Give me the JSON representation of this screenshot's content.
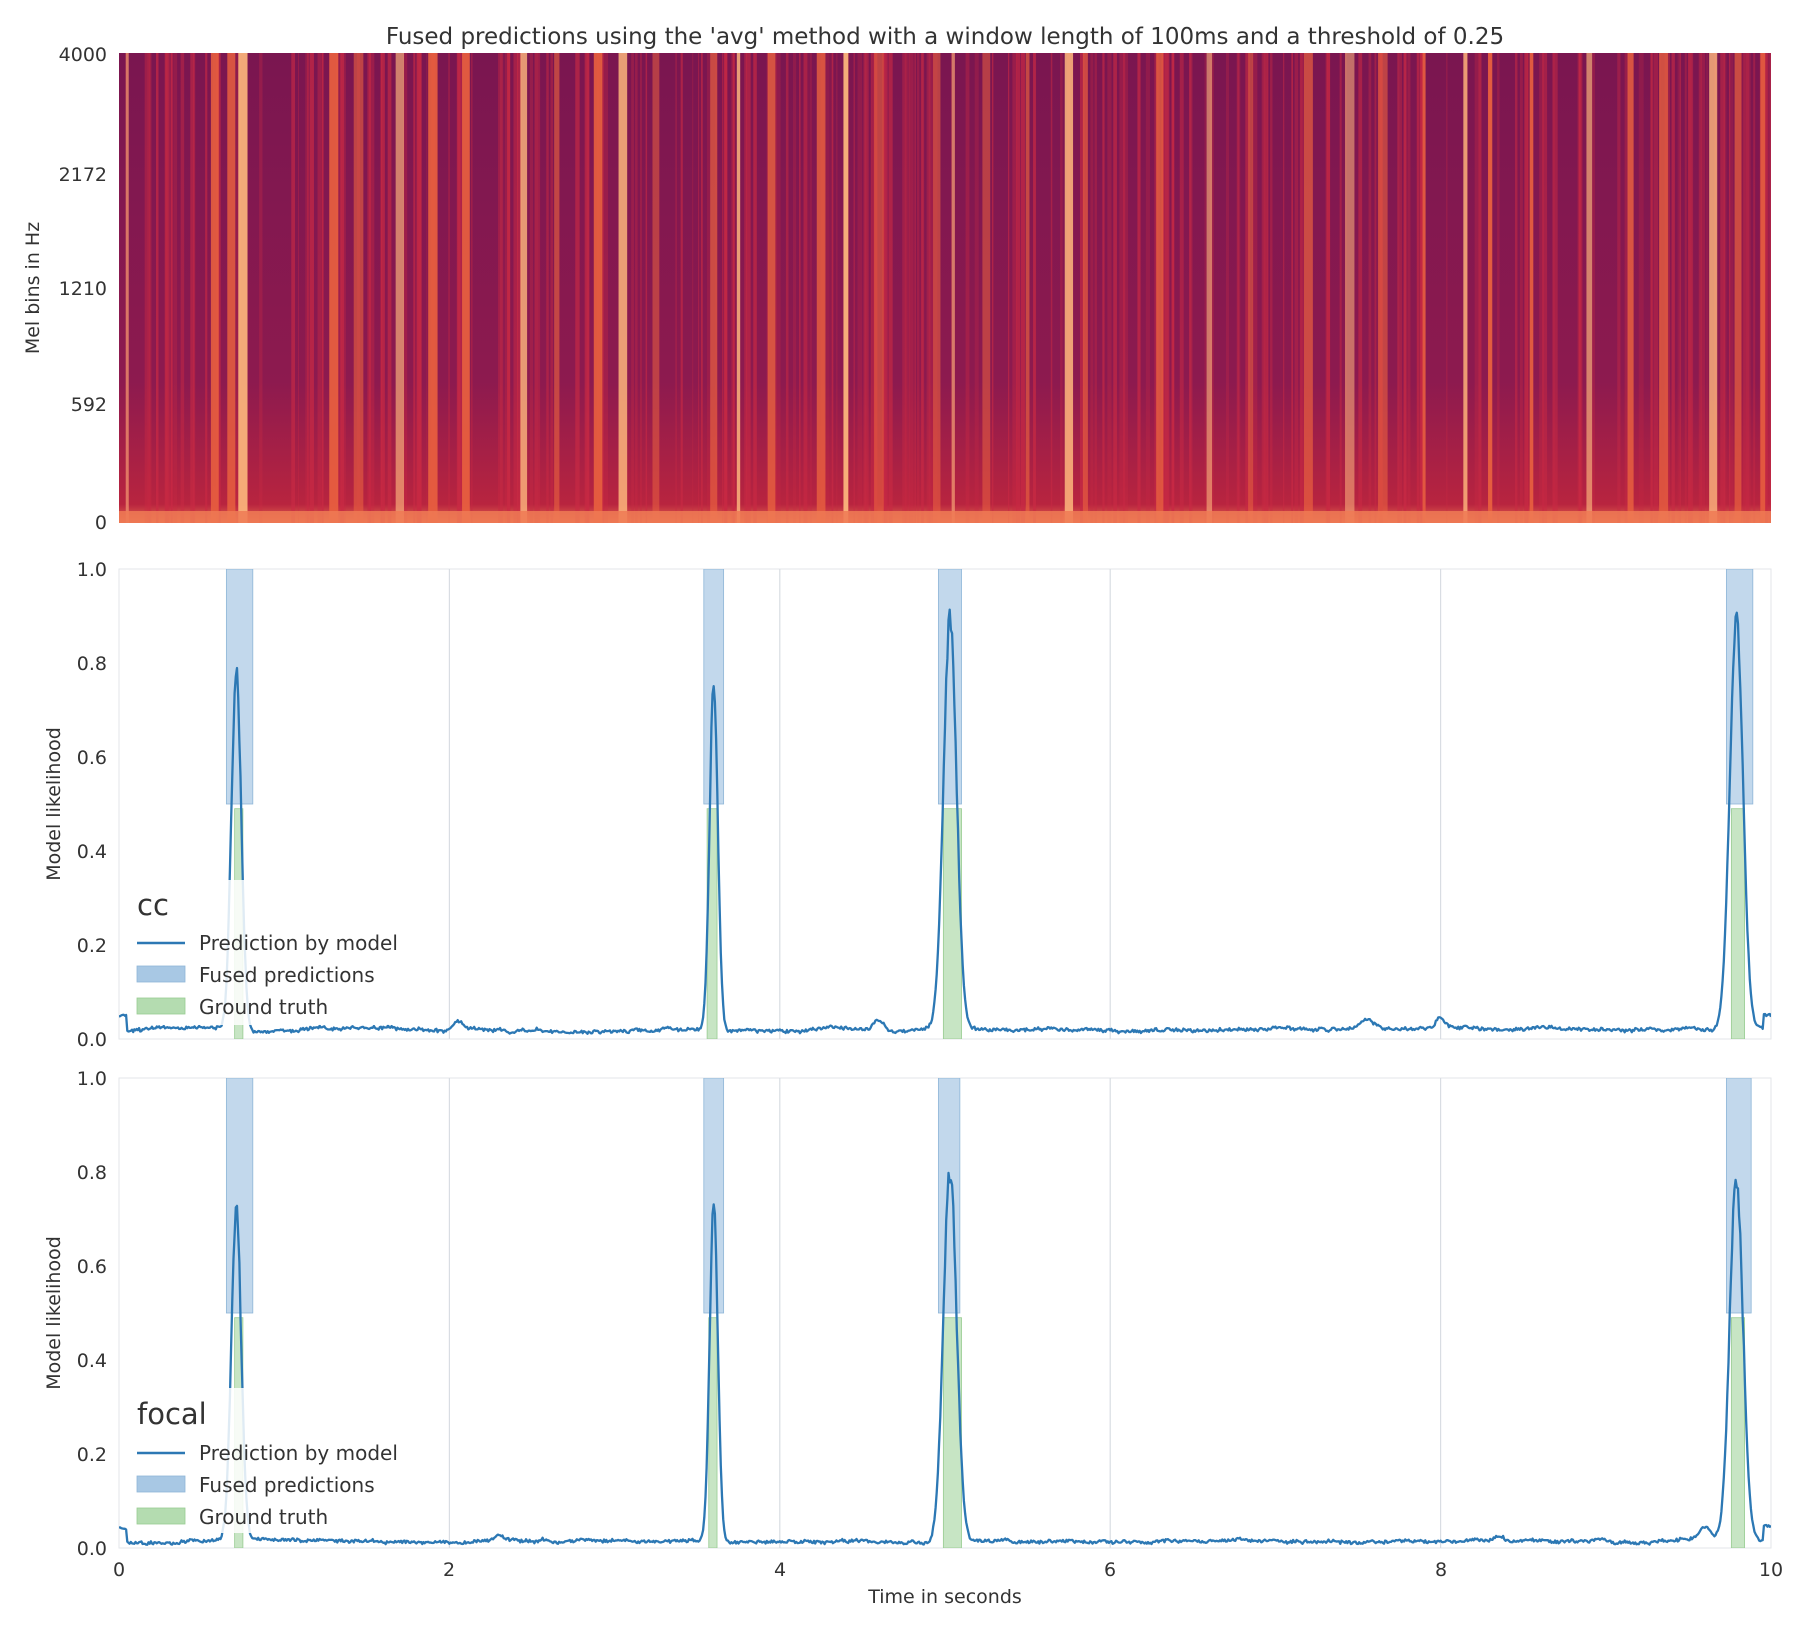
{
  "title": "Fused predictions using the 'avg' method with a window length of 100ms and a threshold of 0.25",
  "colors": {
    "prediction": "#2c78b4",
    "fused": "#a8c8e4",
    "ground_truth": "#b4dcb0",
    "grid": "#d9dde3",
    "spectrogram_low": "#7a1650",
    "spectrogram_mid": "#c92a44",
    "spectrogram_high": "#fbb57c"
  },
  "chart_data": [
    {
      "type": "heatmap",
      "name": "spectrogram",
      "ylabel": "Mel bins in Hz",
      "yticks": [
        "4000",
        "2172",
        "1210",
        "592",
        "0"
      ],
      "xlim": [
        0,
        10
      ],
      "bright_bands_seconds": [
        0.05,
        0.58,
        0.68,
        0.75,
        1.3,
        1.45,
        1.7,
        1.9,
        2.1,
        2.45,
        2.65,
        2.9,
        3.05,
        3.25,
        3.6,
        3.75,
        3.95,
        4.25,
        4.4,
        4.6,
        4.95,
        5.05,
        5.25,
        5.5,
        5.75,
        5.85,
        6.3,
        6.6,
        6.85,
        7.2,
        7.45,
        7.65,
        7.9,
        8.15,
        8.3,
        8.55,
        8.9,
        9.15,
        9.35,
        9.65,
        9.8,
        9.95
      ]
    },
    {
      "type": "line",
      "name": "cc",
      "panel_label": "cc",
      "ylabel": "Model likelihood",
      "yticks": [
        "1.0",
        "0.8",
        "0.6",
        "0.4",
        "0.2",
        "0.0"
      ],
      "xlim": [
        0,
        10
      ],
      "ylim": [
        0,
        1
      ],
      "legend": [
        "Prediction by model",
        "Fused predictions",
        "Ground truth"
      ],
      "fused_predictions": [
        [
          0.65,
          0.81
        ],
        [
          3.54,
          3.66
        ],
        [
          4.96,
          5.1
        ],
        [
          9.73,
          9.89
        ]
      ],
      "ground_truth": [
        [
          0.7,
          0.75
        ],
        [
          3.56,
          3.62
        ],
        [
          4.99,
          5.1
        ],
        [
          9.76,
          9.84
        ]
      ],
      "peaks": [
        {
          "t": 0.71,
          "v": 0.76,
          "w": 0.03
        },
        {
          "t": 3.6,
          "v": 0.74,
          "w": 0.025
        },
        {
          "t": 5.03,
          "v": 0.87,
          "w": 0.04
        },
        {
          "t": 9.79,
          "v": 0.87,
          "w": 0.04
        },
        {
          "t": 2.05,
          "v": 0.02,
          "w": 0.03
        },
        {
          "t": 4.6,
          "v": 0.025,
          "w": 0.03
        },
        {
          "t": 7.55,
          "v": 0.025,
          "w": 0.05
        },
        {
          "t": 8.0,
          "v": 0.02,
          "w": 0.03
        }
      ],
      "baseline": 0.02
    },
    {
      "type": "line",
      "name": "focal",
      "panel_label": "focal",
      "ylabel": "Model likelihood",
      "yticks": [
        "1.0",
        "0.8",
        "0.6",
        "0.4",
        "0.2",
        "0.0"
      ],
      "xlim": [
        0,
        10
      ],
      "ylim": [
        0,
        1
      ],
      "xlabel": "Time in seconds",
      "xticks": [
        "0",
        "2",
        "4",
        "6",
        "8",
        "10"
      ],
      "legend": [
        "Prediction by model",
        "Fused predictions",
        "Ground truth"
      ],
      "fused_predictions": [
        [
          0.65,
          0.81
        ],
        [
          3.54,
          3.66
        ],
        [
          4.96,
          5.09
        ],
        [
          9.73,
          9.88
        ]
      ],
      "ground_truth": [
        [
          0.7,
          0.75
        ],
        [
          3.57,
          3.62
        ],
        [
          4.99,
          5.1
        ],
        [
          9.76,
          9.84
        ]
      ],
      "peaks": [
        {
          "t": 0.71,
          "v": 0.7,
          "w": 0.03
        },
        {
          "t": 3.6,
          "v": 0.71,
          "w": 0.025
        },
        {
          "t": 5.03,
          "v": 0.79,
          "w": 0.04
        },
        {
          "t": 9.79,
          "v": 0.77,
          "w": 0.04
        },
        {
          "t": 2.3,
          "v": 0.012,
          "w": 0.03
        },
        {
          "t": 8.35,
          "v": 0.012,
          "w": 0.03
        },
        {
          "t": 9.6,
          "v": 0.03,
          "w": 0.03
        }
      ],
      "baseline": 0.015
    }
  ]
}
